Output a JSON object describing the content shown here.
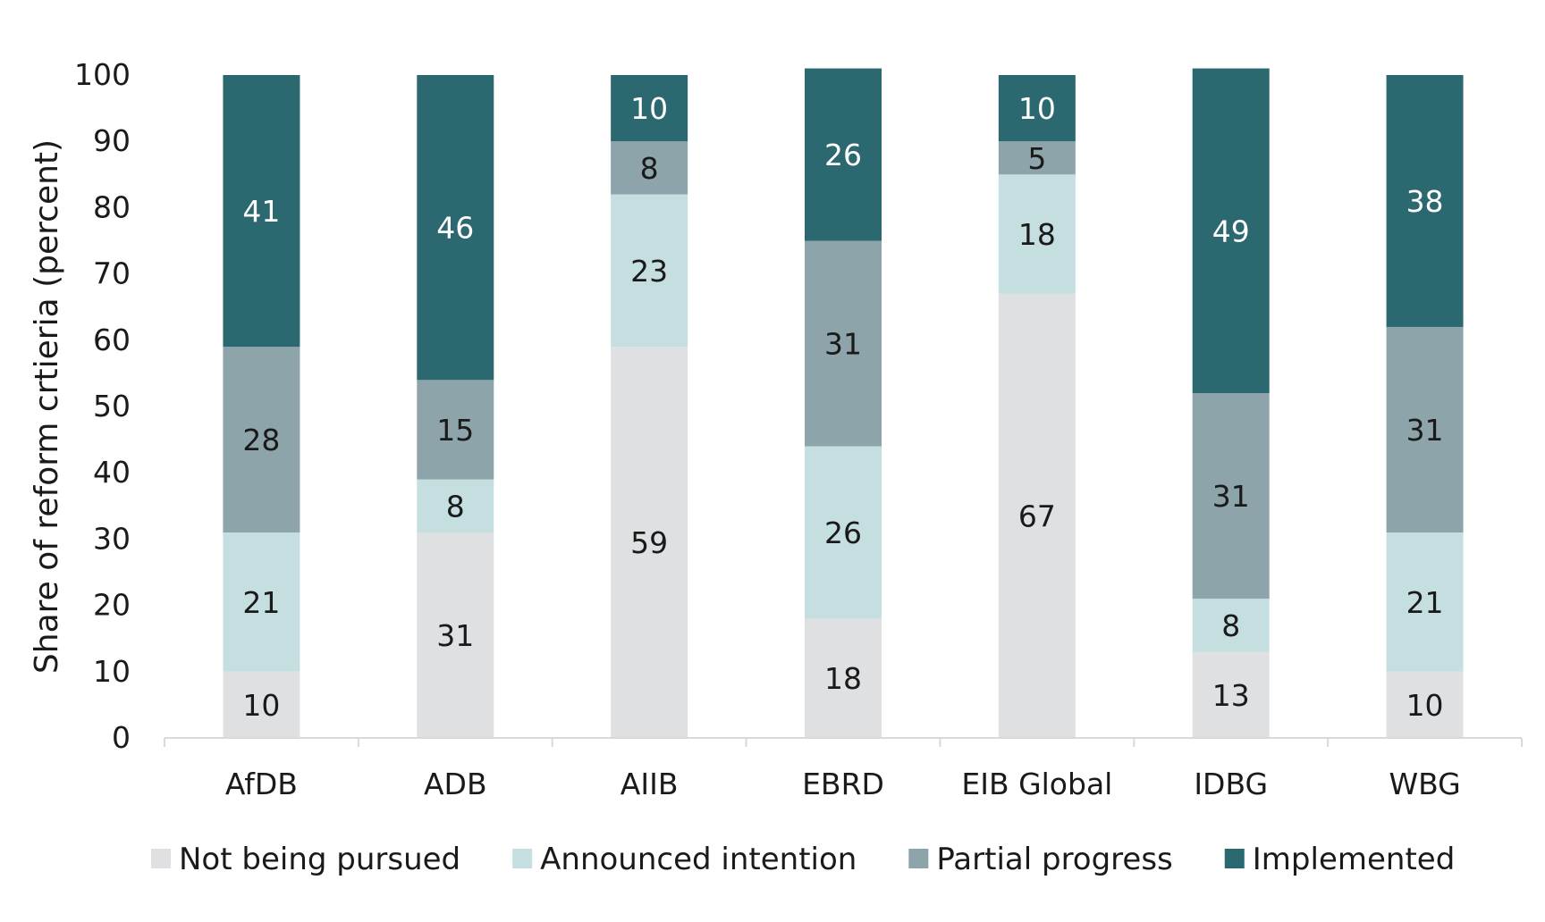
{
  "chart_data": {
    "type": "bar",
    "stacked": true,
    "title": "",
    "xlabel": "",
    "ylabel": "Share of reform crtieria (percent)",
    "ylim": [
      0,
      100
    ],
    "yticks": [
      0,
      10,
      20,
      30,
      40,
      50,
      60,
      70,
      80,
      90,
      100
    ],
    "grid": false,
    "legend_position": "bottom",
    "categories": [
      "AfDB",
      "ADB",
      "AIIB",
      "EBRD",
      "EIB Global",
      "IDBG",
      "WBG"
    ],
    "series": [
      {
        "name": "Not being pursued",
        "color": "#dfe0e2",
        "label_color": "#1a1a1a",
        "values": [
          10,
          31,
          59,
          18,
          67,
          13,
          10
        ]
      },
      {
        "name": "Announced intention",
        "color": "#c5dfe1",
        "label_color": "#1a1a1a",
        "values": [
          21,
          8,
          23,
          26,
          18,
          8,
          21
        ]
      },
      {
        "name": "Partial progress",
        "color": "#8da4aa",
        "label_color": "#1a1a1a",
        "values": [
          28,
          15,
          8,
          31,
          5,
          31,
          31
        ]
      },
      {
        "name": "Implemented",
        "color": "#2c6870",
        "label_color": "#ffffff",
        "values": [
          41,
          46,
          10,
          26,
          10,
          49,
          38
        ]
      }
    ],
    "axis_color": "#d9d9d9"
  }
}
